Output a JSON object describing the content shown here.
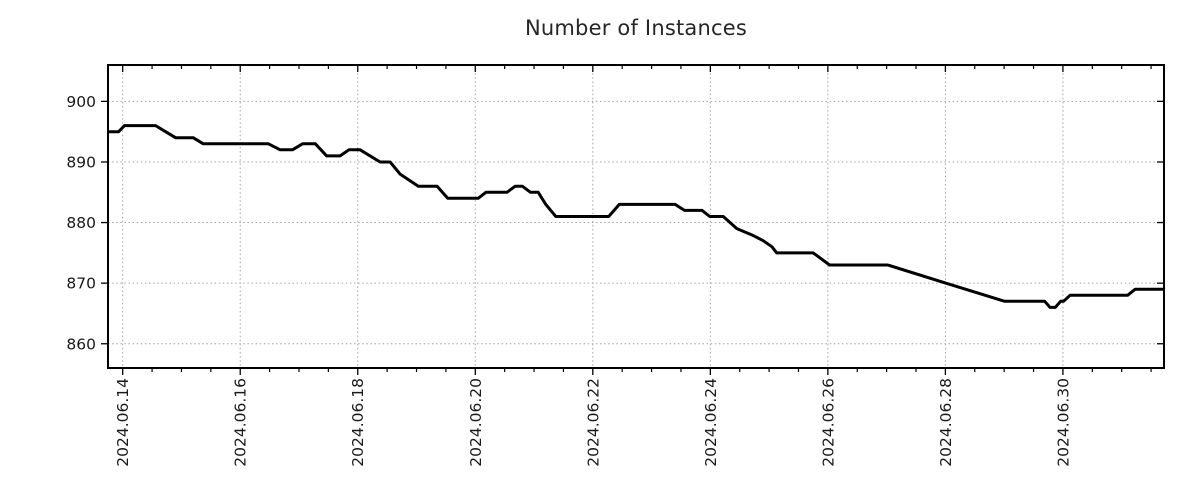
{
  "chart_data": {
    "type": "line",
    "title": "Number of Instances",
    "x_axis": {
      "tick_labels": [
        "2024.06.14",
        "2024.06.16",
        "2024.06.18",
        "2024.06.20",
        "2024.06.22",
        "2024.06.24",
        "2024.06.26",
        "2024.06.28",
        "2024.06.30"
      ],
      "major_tick_positions_days": [
        0,
        2,
        4,
        6,
        8,
        10,
        12,
        14,
        16
      ],
      "minor_tick_step_days": 0.5,
      "range_days": [
        -0.25,
        17.72
      ],
      "label_rotation_deg": -90
    },
    "y_axis": {
      "tick_labels": [
        "860",
        "870",
        "880",
        "890",
        "900"
      ],
      "tick_values": [
        860,
        870,
        880,
        890,
        900
      ],
      "range": [
        856,
        906
      ]
    },
    "grid": {
      "show": true,
      "style": "dotted",
      "color": "#a3a3a3"
    },
    "legend": {
      "show": false
    },
    "series": [
      {
        "name": "instances",
        "color": "#000000",
        "width": 3,
        "points_day_value": [
          [
            -0.24,
            895
          ],
          [
            -0.07,
            895
          ],
          [
            0.03,
            896
          ],
          [
            0.56,
            896
          ],
          [
            0.73,
            895
          ],
          [
            0.9,
            894
          ],
          [
            1.2,
            894
          ],
          [
            1.37,
            893
          ],
          [
            2.48,
            893
          ],
          [
            2.68,
            892
          ],
          [
            2.89,
            892
          ],
          [
            3.06,
            893
          ],
          [
            3.28,
            893
          ],
          [
            3.47,
            891
          ],
          [
            3.7,
            891
          ],
          [
            3.85,
            892
          ],
          [
            4.04,
            892
          ],
          [
            4.38,
            890
          ],
          [
            4.55,
            890
          ],
          [
            4.72,
            888
          ],
          [
            5.03,
            886
          ],
          [
            5.35,
            886
          ],
          [
            5.53,
            884
          ],
          [
            6.05,
            884
          ],
          [
            6.18,
            885
          ],
          [
            6.54,
            885
          ],
          [
            6.68,
            886
          ],
          [
            6.8,
            886
          ],
          [
            6.94,
            885
          ],
          [
            7.07,
            885
          ],
          [
            7.2,
            883
          ],
          [
            7.37,
            881
          ],
          [
            8.27,
            881
          ],
          [
            8.45,
            883
          ],
          [
            9.4,
            883
          ],
          [
            9.56,
            882
          ],
          [
            9.86,
            882
          ],
          [
            9.99,
            881
          ],
          [
            10.22,
            881
          ],
          [
            10.45,
            879
          ],
          [
            10.7,
            878
          ],
          [
            10.9,
            877
          ],
          [
            11.05,
            876
          ],
          [
            11.13,
            875
          ],
          [
            11.75,
            875
          ],
          [
            11.89,
            874
          ],
          [
            12.03,
            873
          ],
          [
            13.02,
            873
          ],
          [
            14.01,
            870
          ],
          [
            15.01,
            867
          ],
          [
            15.69,
            867
          ],
          [
            15.78,
            866
          ],
          [
            15.87,
            866
          ],
          [
            15.96,
            867
          ],
          [
            16.01,
            867
          ],
          [
            16.12,
            868
          ],
          [
            17.1,
            868
          ],
          [
            17.23,
            869
          ],
          [
            17.72,
            869
          ]
        ]
      }
    ],
    "colors": {
      "background": "#ffffff",
      "axis_border": "#000000",
      "tick_text": "#1a1a1a",
      "title_text": "#262626",
      "grid": "#a3a3a3",
      "line": "#000000"
    }
  }
}
